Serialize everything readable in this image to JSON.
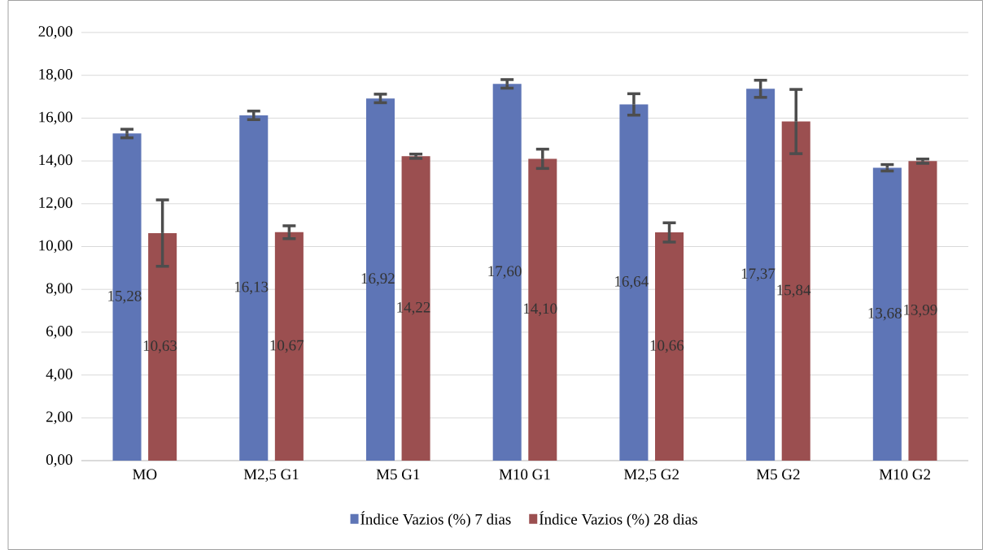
{
  "chart_data": {
    "type": "bar",
    "categories": [
      "MO",
      "M2,5 G1",
      "M5 G1",
      "M10 G1",
      "M2,5 G2",
      "M5 G2",
      "M10 G2"
    ],
    "series": [
      {
        "name": "Índice Vazios (%) 7 dias",
        "color": "#5e75b6",
        "values": [
          15.28,
          16.13,
          16.92,
          17.6,
          16.64,
          17.37,
          13.68
        ],
        "errors": [
          0.2,
          0.2,
          0.2,
          0.2,
          0.5,
          0.4,
          0.15
        ],
        "value_labels": [
          "15,28",
          "16,13",
          "16,92",
          "17,60",
          "16,64",
          "17,37",
          "13,68"
        ]
      },
      {
        "name": "Índice Vazios (%) 28 dias",
        "color": "#9b4f50",
        "values": [
          10.63,
          10.67,
          14.22,
          14.1,
          10.66,
          15.84,
          13.99
        ],
        "errors": [
          1.55,
          0.3,
          0.1,
          0.45,
          0.45,
          1.5,
          0.1
        ],
        "value_labels": [
          "10,63",
          "10,67",
          "14,22",
          "14,10",
          "10,66",
          "15,84",
          "13,99"
        ]
      }
    ],
    "ylim": [
      0,
      20
    ],
    "yticks": [
      {
        "value": 0,
        "label": "0,00"
      },
      {
        "value": 2,
        "label": "2,00"
      },
      {
        "value": 4,
        "label": "4,00"
      },
      {
        "value": 6,
        "label": "6,00"
      },
      {
        "value": 8,
        "label": "8,00"
      },
      {
        "value": 10,
        "label": "10,00"
      },
      {
        "value": 12,
        "label": "12,00"
      },
      {
        "value": 14,
        "label": "14,00"
      },
      {
        "value": 16,
        "label": "16,00"
      },
      {
        "value": 18,
        "label": "18,00"
      },
      {
        "value": 20,
        "label": "20,00"
      }
    ],
    "grid": "y",
    "legend": "bottom"
  }
}
